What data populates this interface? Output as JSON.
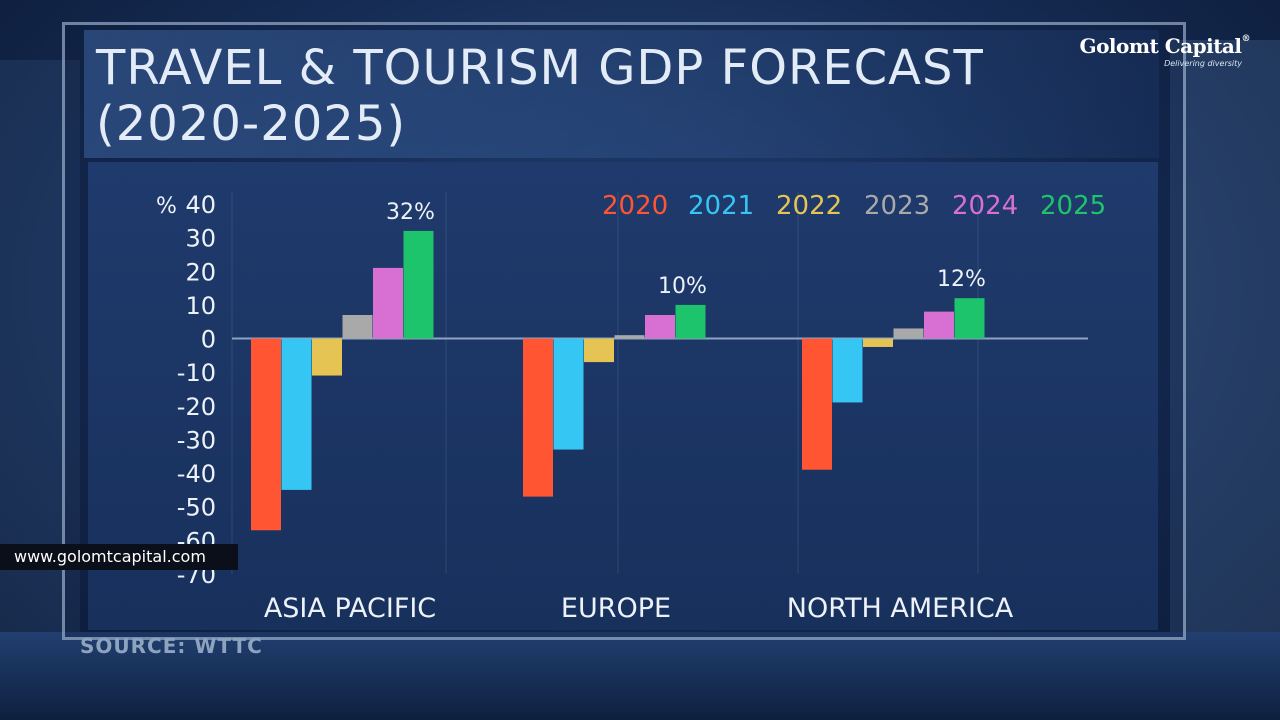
{
  "header": {
    "title_line1": "TRAVEL & TOURISM GDP FORECAST",
    "title_line2": "(2020-2025)"
  },
  "logo": {
    "name": "Golomt Capital",
    "registered": "®",
    "tagline": "Delivering diversity"
  },
  "source_text": "SOURCE: WTTC",
  "website": "www.golomtcapital.com",
  "chart_data": {
    "type": "bar",
    "title": "TRAVEL & TOURISM GDP FORECAST (2020-2025)",
    "ylabel": "%",
    "xlabel": "",
    "ylim": [
      -70,
      40
    ],
    "yticks": [
      40,
      30,
      20,
      10,
      0,
      -10,
      -20,
      -30,
      -40,
      -50,
      -60,
      -70
    ],
    "grid": true,
    "legend_position": "top-right",
    "categories": [
      "ASIA PACIFIC",
      "EUROPE",
      "NORTH AMERICA"
    ],
    "series": [
      {
        "name": "2020",
        "color": "#ff5533",
        "values": [
          -57,
          -47,
          -39
        ]
      },
      {
        "name": "2021",
        "color": "#36c6f4",
        "values": [
          -45,
          -33,
          -19
        ]
      },
      {
        "name": "2022",
        "color": "#e6c453",
        "values": [
          -11,
          -7,
          -2.5
        ]
      },
      {
        "name": "2023",
        "color": "#a9a9a9",
        "values": [
          7,
          1,
          3
        ]
      },
      {
        "name": "2024",
        "color": "#d86fd3",
        "values": [
          21,
          7,
          8
        ]
      },
      {
        "name": "2025",
        "color": "#1ec46c",
        "values": [
          32,
          10,
          12
        ]
      }
    ],
    "annotations": [
      {
        "category": "ASIA PACIFIC",
        "series": "2025",
        "text": "32%"
      },
      {
        "category": "EUROPE",
        "series": "2025",
        "text": "10%"
      },
      {
        "category": "NORTH AMERICA",
        "series": "2025",
        "text": "12%"
      }
    ]
  }
}
